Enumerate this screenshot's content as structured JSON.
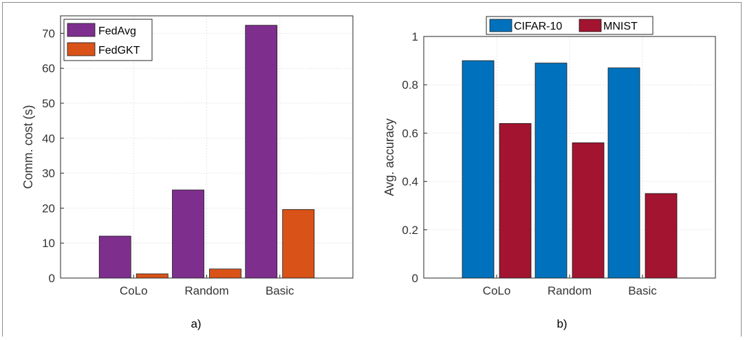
{
  "chart_data": [
    {
      "type": "bar",
      "categories": [
        "CoLo",
        "Random",
        "Basic"
      ],
      "series": [
        {
          "name": "FedAvg",
          "values": [
            12.0,
            25.2,
            72.3
          ],
          "color": "#7E2F8E"
        },
        {
          "name": "FedGKT",
          "values": [
            1.2,
            2.6,
            19.6
          ],
          "color": "#D95319"
        }
      ],
      "xlabel": "",
      "ylabel": "Comm. cost (s)",
      "ylim": [
        0,
        75
      ],
      "yticks": [
        "0",
        "10",
        "20",
        "30",
        "40",
        "50",
        "60",
        "70"
      ],
      "legend_placement": "top-left",
      "grid": true,
      "caption": "a)"
    },
    {
      "type": "bar",
      "categories": [
        "CoLo",
        "Random",
        "Basic"
      ],
      "series": [
        {
          "name": "CIFAR-10",
          "values": [
            0.9,
            0.89,
            0.87
          ],
          "color": "#0072BD"
        },
        {
          "name": "MNIST",
          "values": [
            0.64,
            0.56,
            0.35
          ],
          "color": "#A2142F"
        }
      ],
      "xlabel": "",
      "ylabel": "Avg. accuracy",
      "ylim": [
        0,
        1
      ],
      "yticks": [
        "0",
        "0.2",
        "0.4",
        "0.6",
        "0.8",
        "1"
      ],
      "legend_placement": "top-center-outside",
      "grid": true,
      "caption": "b)"
    }
  ]
}
